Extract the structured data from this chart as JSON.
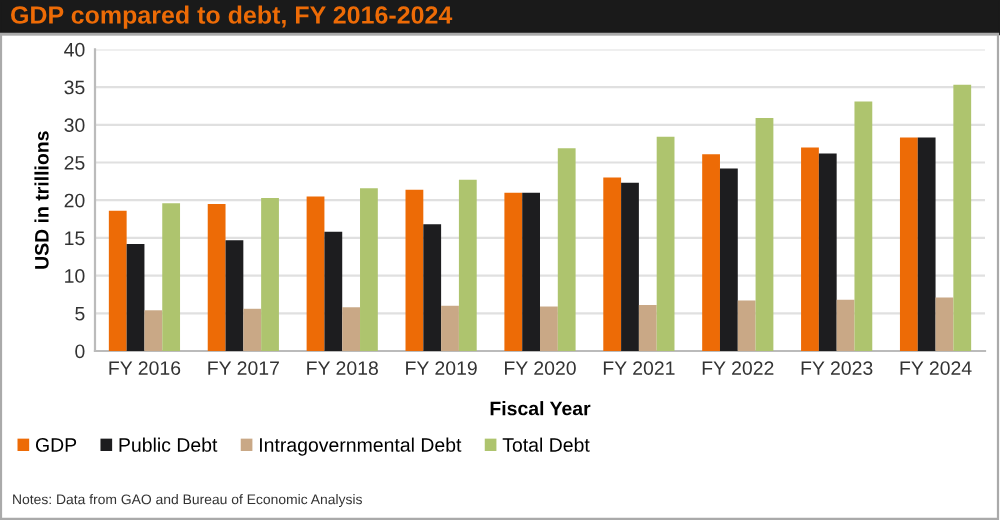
{
  "chart_data": {
    "type": "bar",
    "title": "GDP compared to debt, FY 2016-2024",
    "xlabel": "Fiscal Year",
    "ylabel": "USD in trillions",
    "categories": [
      "FY 2016",
      "FY 2017",
      "FY 2018",
      "FY 2019",
      "FY 2020",
      "FY 2021",
      "FY 2022",
      "FY 2023",
      "FY 2024"
    ],
    "series": [
      {
        "name": "GDP",
        "color": "#ed6b06",
        "values": [
          18.6,
          19.5,
          20.5,
          21.4,
          21.0,
          23.0,
          26.1,
          27.0,
          28.3
        ]
      },
      {
        "name": "Public Debt",
        "color": "#1d1d1f",
        "values": [
          14.2,
          14.7,
          15.8,
          16.8,
          21.0,
          22.3,
          24.2,
          26.2,
          28.3
        ]
      },
      {
        "name": "Intragovernmental Debt",
        "color": "#c9a886",
        "values": [
          5.4,
          5.6,
          5.8,
          6.0,
          5.9,
          6.1,
          6.7,
          6.8,
          7.1
        ]
      },
      {
        "name": "Total Debt",
        "color": "#aec46e",
        "values": [
          19.6,
          20.3,
          21.6,
          22.7,
          26.9,
          28.4,
          30.9,
          33.1,
          35.3
        ]
      }
    ],
    "ylim": [
      0,
      40
    ],
    "yticks": [
      0,
      5,
      10,
      15,
      20,
      25,
      30,
      35,
      40
    ],
    "grid": "y",
    "legend": "bottom",
    "annotations": [
      "Notes: Data from GAO and Bureau of Economic Analysis"
    ]
  }
}
